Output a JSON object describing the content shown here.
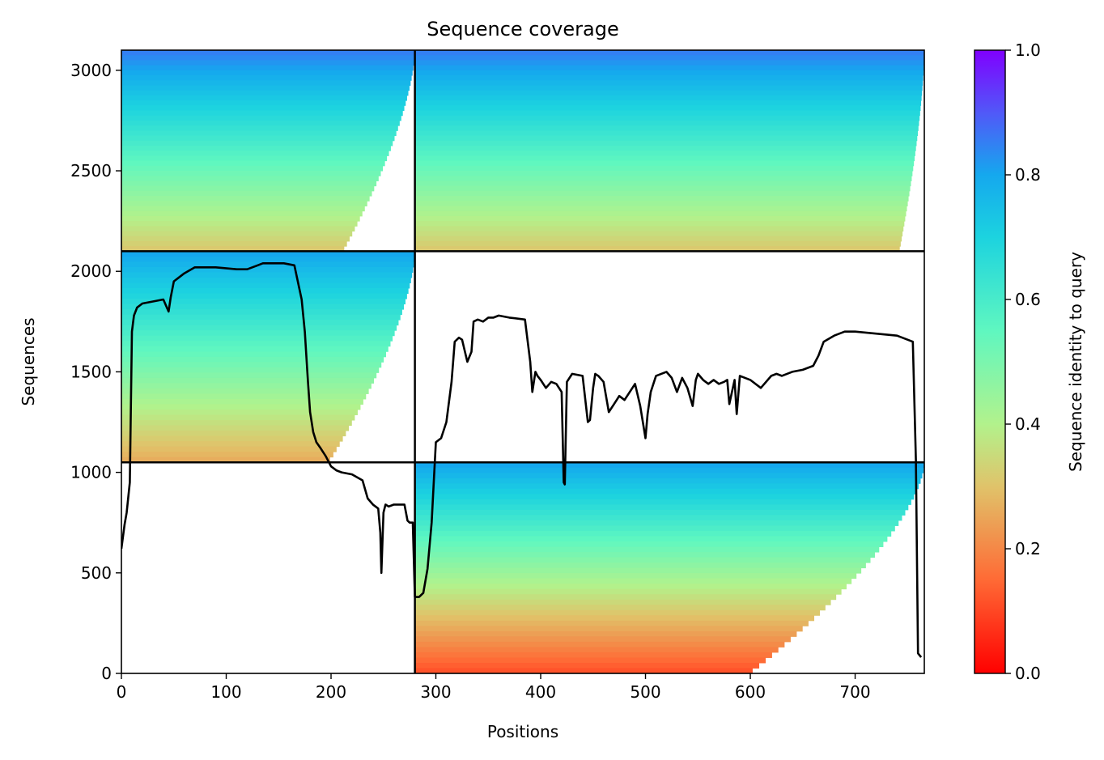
{
  "chart_data": {
    "type": "heatmap",
    "title": "Sequence coverage",
    "xlabel": "Positions",
    "ylabel": "Sequences",
    "xlim": [
      0,
      766
    ],
    "ylim": [
      0,
      3100
    ],
    "xticks": [
      0,
      100,
      200,
      300,
      400,
      500,
      600,
      700
    ],
    "yticks": [
      0,
      500,
      1000,
      1500,
      2000,
      2500,
      3000
    ],
    "colorbar": {
      "label": "Sequence identity to query",
      "range": [
        0,
        1
      ],
      "ticks": [
        "0.0",
        "0.2",
        "0.4",
        "0.6",
        "0.8",
        "1.0"
      ],
      "colormap": "rainbow_r"
    },
    "block_boundaries": {
      "x": [
        280
      ],
      "y": [
        1050,
        2100
      ]
    },
    "msa_blocks": [
      {
        "x0": 0,
        "x1": 280,
        "y0": 2100,
        "y1": 3100,
        "top_identity": 0.85,
        "bottom_identity": 0.3,
        "coverage_taper": 0.25
      },
      {
        "x0": 280,
        "x1": 766,
        "y0": 2100,
        "y1": 3100,
        "top_identity": 0.85,
        "bottom_identity": 0.3,
        "coverage_taper": 0.05
      },
      {
        "x0": 0,
        "x1": 280,
        "y0": 1050,
        "y1": 2100,
        "top_identity": 0.8,
        "bottom_identity": 0.25,
        "coverage_taper": 0.3
      },
      {
        "x0": 280,
        "x1": 766,
        "y0": 0,
        "y1": 1050,
        "top_identity": 0.8,
        "bottom_identity": 0.1,
        "coverage_taper": 0.35
      }
    ],
    "coverage_line": {
      "x": [
        0,
        3,
        5,
        8,
        10,
        12,
        15,
        20,
        30,
        40,
        45,
        47,
        50,
        55,
        60,
        70,
        90,
        110,
        120,
        130,
        135,
        140,
        155,
        165,
        172,
        175,
        178,
        180,
        183,
        186,
        190,
        195,
        200,
        205,
        210,
        220,
        230,
        235,
        240,
        245,
        247,
        248,
        250,
        252,
        255,
        260,
        270,
        273,
        275,
        278,
        280,
        282,
        284,
        288,
        292,
        296,
        300,
        305,
        310,
        315,
        318,
        320,
        322,
        325,
        330,
        334,
        336,
        340,
        345,
        350,
        355,
        360,
        370,
        385,
        390,
        392,
        395,
        397,
        400,
        405,
        410,
        415,
        420,
        422,
        423,
        425,
        430,
        440,
        445,
        447,
        450,
        452,
        455,
        460,
        465,
        470,
        475,
        480,
        490,
        495,
        500,
        502,
        505,
        510,
        520,
        525,
        530,
        535,
        540,
        545,
        548,
        550,
        555,
        560,
        565,
        570,
        575,
        578,
        580,
        585,
        587,
        590,
        600,
        610,
        620,
        625,
        630,
        640,
        650,
        660,
        665,
        670,
        680,
        690,
        700,
        720,
        740,
        755,
        758,
        760,
        763,
        765
      ],
      "y": [
        620,
        740,
        800,
        950,
        1700,
        1780,
        1820,
        1840,
        1850,
        1860,
        1800,
        1870,
        1950,
        1970,
        1990,
        2020,
        2020,
        2010,
        2010,
        2030,
        2040,
        2040,
        2040,
        2030,
        1860,
        1700,
        1450,
        1300,
        1200,
        1150,
        1120,
        1080,
        1030,
        1010,
        1000,
        990,
        960,
        870,
        840,
        820,
        700,
        500,
        800,
        840,
        830,
        840,
        840,
        760,
        750,
        750,
        380,
        380,
        380,
        400,
        520,
        750,
        1150,
        1170,
        1250,
        1450,
        1650,
        1660,
        1670,
        1660,
        1550,
        1600,
        1750,
        1760,
        1750,
        1770,
        1770,
        1780,
        1770,
        1760,
        1550,
        1400,
        1500,
        1480,
        1460,
        1420,
        1450,
        1440,
        1400,
        950,
        940,
        1450,
        1490,
        1480,
        1250,
        1260,
        1420,
        1490,
        1480,
        1450,
        1300,
        1340,
        1380,
        1360,
        1440,
        1330,
        1170,
        1290,
        1400,
        1480,
        1500,
        1470,
        1400,
        1470,
        1420,
        1330,
        1460,
        1490,
        1460,
        1440,
        1460,
        1440,
        1450,
        1460,
        1340,
        1460,
        1290,
        1480,
        1460,
        1420,
        1480,
        1490,
        1480,
        1500,
        1510,
        1530,
        1580,
        1650,
        1680,
        1700,
        1700,
        1690,
        1680,
        1650,
        1060,
        100,
        80
      ]
    }
  }
}
